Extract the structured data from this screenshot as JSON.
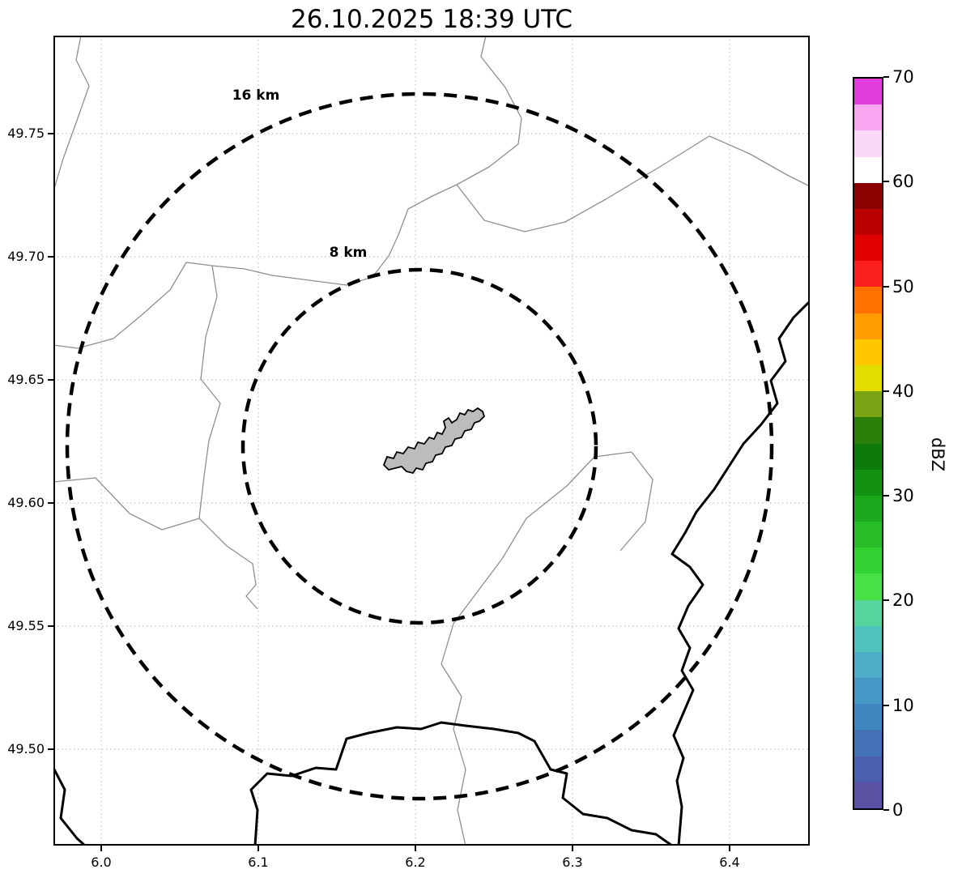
{
  "figure": {
    "title": "26.10.2025 18:39 UTC"
  },
  "axes": {
    "x_tick_labels": [
      "6.0",
      "6.1",
      "6.2",
      "6.3",
      "6.4"
    ],
    "y_tick_labels": [
      "49.75",
      "49.70",
      "49.65",
      "49.60",
      "49.55",
      "49.50"
    ]
  },
  "range_rings": {
    "outer_label": "16 km",
    "inner_label": "8 km"
  },
  "colorbar": {
    "label": "dBZ",
    "tick_labels": [
      "0",
      "10",
      "20",
      "30",
      "40",
      "50",
      "60",
      "70"
    ],
    "range": [
      0,
      70
    ],
    "band_colors_bottom_to_top": [
      "#5a53a3",
      "#4c5fae",
      "#4372b7",
      "#3f85bf",
      "#4598c5",
      "#4fadc8",
      "#4fc2bb",
      "#55d49e",
      "#47e147",
      "#32d232",
      "#28bd28",
      "#1ca81c",
      "#129112",
      "#0b7a0b",
      "#2b7e09",
      "#78a312",
      "#e6dd00",
      "#ffc800",
      "#ff9c00",
      "#ff7200",
      "#fb1f1f",
      "#e30000",
      "#ba0000",
      "#8b0000",
      "#ffffff",
      "#fbd7f8",
      "#f7a6ef",
      "#e23ede"
    ]
  },
  "map_colors": {
    "city_fill": "#bcbcbc",
    "admin_line": "#8f8f8f",
    "border_line": "#000000",
    "grid_line": "#c4c4c4"
  },
  "chart_data": {
    "type": "heatmap",
    "title": "26.10.2025 18:39 UTC",
    "xlabel": "",
    "ylabel": "",
    "x_ticks": [
      6.0,
      6.1,
      6.2,
      6.3,
      6.4
    ],
    "y_ticks": [
      49.75,
      49.7,
      49.65,
      49.6,
      49.55,
      49.5
    ],
    "xlim": [
      5.97,
      6.45
    ],
    "ylim": [
      49.46,
      49.79
    ],
    "grid": true,
    "legend_position": "none",
    "colorbar": {
      "label": "dBZ",
      "ticks": [
        0,
        10,
        20,
        30,
        40,
        50,
        60,
        70
      ],
      "range": [
        0,
        70
      ]
    },
    "range_rings_km": [
      8,
      16
    ],
    "ring_center": {
      "lon": 6.2,
      "lat": 49.62
    },
    "radar_echoes": []
  }
}
